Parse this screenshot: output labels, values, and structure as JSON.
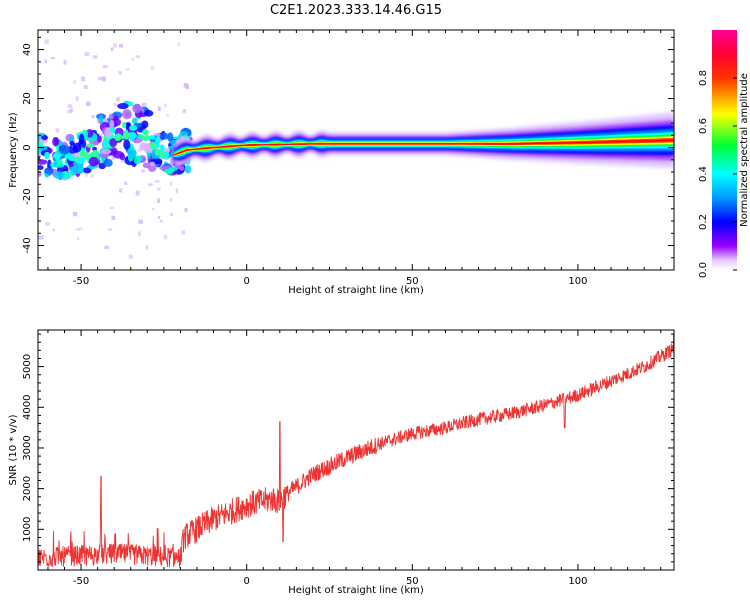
{
  "figure": {
    "title": "C2E1.2023.333.14.46.G15"
  },
  "chart_data": [
    {
      "type": "heatmap",
      "title": "C2E1.2023.333.14.46.G15",
      "xlabel": "Height of straight line (km)",
      "ylabel": "Frequency (Hz)",
      "xlim": [
        -63,
        129
      ],
      "ylim": [
        -50,
        48
      ],
      "xticks": [
        -50,
        0,
        50,
        100
      ],
      "yticks": [
        -40,
        -20,
        0,
        20,
        40
      ],
      "colorbar": {
        "label": "Normalized spectral amplitude",
        "range": [
          0,
          1
        ],
        "ticks": [
          "0.0",
          "0.2",
          "0.4",
          "0.6",
          "0.8"
        ],
        "colormap": "rainbow (white-purple-blue-cyan-green-yellow-red-magenta)"
      },
      "ridge": {
        "x": [
          -62,
          -55,
          -48,
          -42,
          -36,
          -30,
          -26,
          -22,
          -18,
          -10,
          0,
          20,
          50,
          80,
          100,
          129
        ],
        "frequency": [
          -3,
          -4,
          -2,
          4,
          7,
          4,
          -1,
          -3,
          -1,
          0,
          1,
          1.5,
          1.5,
          1.5,
          2,
          3
        ]
      },
      "grid": false
    },
    {
      "type": "line",
      "xlabel": "Height of straight line (km)",
      "ylabel": "SNR (10 * v/v)",
      "xlim": [
        -63,
        129
      ],
      "ylim": [
        0,
        5900
      ],
      "xticks": [
        -50,
        0,
        50,
        100
      ],
      "yticks": [
        1000,
        2000,
        3000,
        4000,
        5000
      ],
      "color": "#ee3333",
      "trend": {
        "x": [
          -63,
          -50,
          -40,
          -30,
          -20,
          -19,
          -10,
          0,
          8,
          10,
          11,
          20,
          30,
          40,
          50,
          60,
          70,
          80,
          90,
          100,
          110,
          120,
          129
        ],
        "snr": [
          300,
          350,
          400,
          350,
          300,
          800,
          1250,
          1600,
          1750,
          1650,
          1800,
          2350,
          2750,
          3100,
          3350,
          3500,
          3700,
          3850,
          4050,
          4300,
          4650,
          5000,
          5450
        ]
      },
      "spikes": [
        {
          "x": -44,
          "snr": 2300
        },
        {
          "x": 10,
          "snr": 3650
        },
        {
          "x": 11,
          "snr": 700
        },
        {
          "x": 96,
          "snr": 3500
        },
        {
          "x": 129,
          "snr": 5800
        }
      ],
      "grid": false
    }
  ]
}
